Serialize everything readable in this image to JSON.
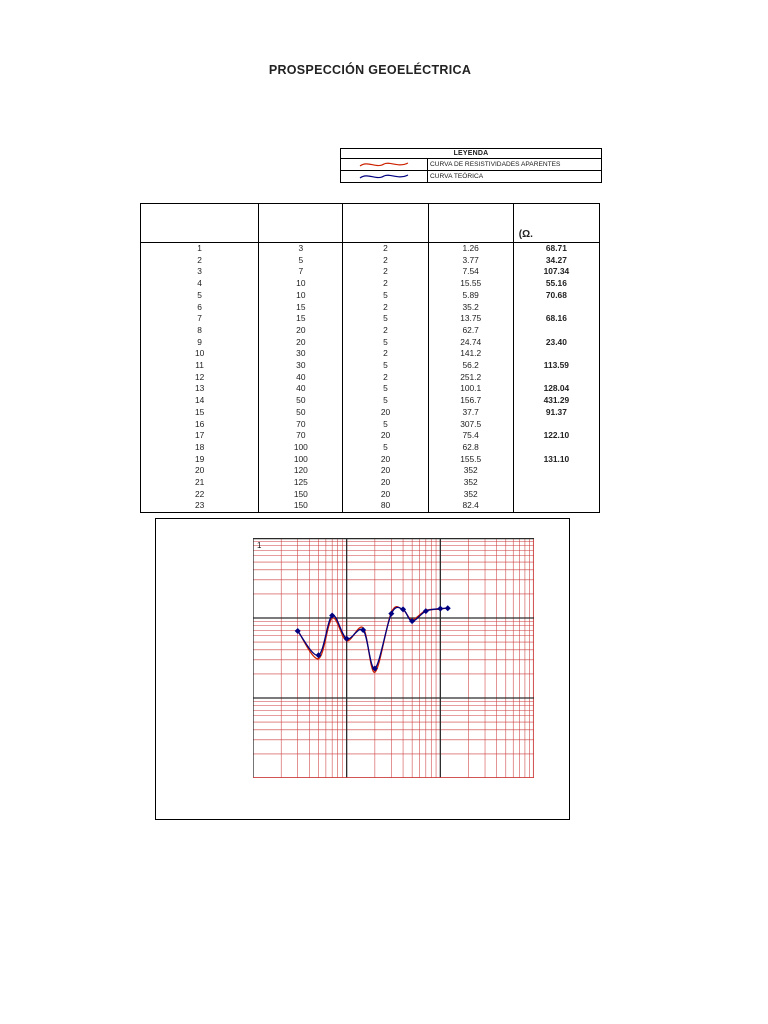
{
  "title": "PROSPECCIÓN GEOELÉCTRICA",
  "legend": {
    "title": "LEYENDA",
    "items": [
      {
        "name": "apparent-resistivity-curve",
        "label": "CURVA DE RESISTIVIDADES APARENTES",
        "color": "#cc2200"
      },
      {
        "name": "theoretical-curve",
        "label": "CURVA TEÓRICA",
        "color": "#000080"
      }
    ]
  },
  "table": {
    "headers": [
      "",
      "",
      "",
      "",
      "(Ω."
    ],
    "rows": [
      [
        "1",
        "3",
        "2",
        "1.26",
        "68.71"
      ],
      [
        "2",
        "5",
        "2",
        "3.77",
        "34.27"
      ],
      [
        "3",
        "7",
        "2",
        "7.54",
        "107.34"
      ],
      [
        "4",
        "10",
        "2",
        "15.55",
        "55.16"
      ],
      [
        "5",
        "10",
        "5",
        "5.89",
        "70.68"
      ],
      [
        "6",
        "15",
        "2",
        "35.2",
        ""
      ],
      [
        "7",
        "15",
        "5",
        "13.75",
        "68.16"
      ],
      [
        "8",
        "20",
        "2",
        "62.7",
        ""
      ],
      [
        "9",
        "20",
        "5",
        "24.74",
        "23.40"
      ],
      [
        "10",
        "30",
        "2",
        "141.2",
        ""
      ],
      [
        "11",
        "30",
        "5",
        "56.2",
        "113.59"
      ],
      [
        "12",
        "40",
        "2",
        "251.2",
        ""
      ],
      [
        "13",
        "40",
        "5",
        "100.1",
        "128.04"
      ],
      [
        "14",
        "50",
        "5",
        "156.7",
        "431.29"
      ],
      [
        "15",
        "50",
        "20",
        "37.7",
        "91.37"
      ],
      [
        "16",
        "70",
        "5",
        "307.5",
        ""
      ],
      [
        "17",
        "70",
        "20",
        "75.4",
        "122.10"
      ],
      [
        "18",
        "100",
        "5",
        "62.8",
        ""
      ],
      [
        "19",
        "100",
        "20",
        "155.5",
        "131.10"
      ],
      [
        "20",
        "120",
        "20",
        "352",
        ""
      ],
      [
        "21",
        "125",
        "20",
        "352",
        ""
      ],
      [
        "22",
        "150",
        "20",
        "352",
        ""
      ],
      [
        "23",
        "150",
        "80",
        "82.4",
        ""
      ]
    ]
  },
  "chart_data": {
    "type": "line",
    "title": "",
    "xlabel": "",
    "ylabel": "",
    "x_scale": "log",
    "y_scale": "log",
    "x_range": [
      1,
      1000
    ],
    "y_range": [
      1,
      1000
    ],
    "grid": true,
    "corner_label": "1",
    "minor_grid_color": "#cc3b3b",
    "major_grid_color": "#2a2a2a",
    "series": [
      {
        "name": "CURVA DE RESISTIVIDADES APARENTES",
        "color": "#cc2200",
        "markers": false,
        "points": [
          [
            3,
            70
          ],
          [
            5,
            31
          ],
          [
            7,
            100
          ],
          [
            10,
            52
          ],
          [
            15,
            75
          ],
          [
            20,
            21
          ],
          [
            30,
            118
          ],
          [
            40,
            126
          ],
          [
            50,
            95
          ],
          [
            70,
            124
          ],
          [
            100,
            129
          ],
          [
            120,
            134
          ]
        ]
      },
      {
        "name": "CURVA TEÓRICA",
        "color": "#000080",
        "markers": true,
        "points": [
          [
            3,
            68.71
          ],
          [
            5,
            34.27
          ],
          [
            7,
            107.34
          ],
          [
            10,
            55.16
          ],
          [
            15,
            70.68
          ],
          [
            20,
            23.4
          ],
          [
            30,
            113.59
          ],
          [
            40,
            128.04
          ],
          [
            50,
            91.37
          ],
          [
            70,
            122.1
          ],
          [
            100,
            131.1
          ],
          [
            120,
            132.5
          ]
        ]
      }
    ]
  }
}
